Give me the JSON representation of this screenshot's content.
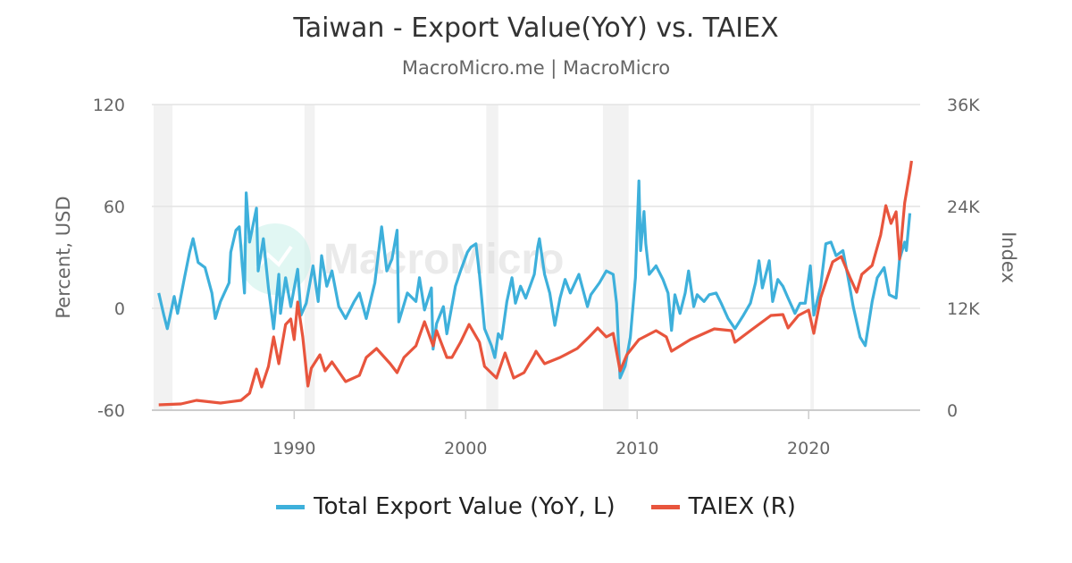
{
  "title": "Taiwan - Export Value(YoY) vs. TAIEX",
  "subtitle": "MacroMicro.me | MacroMicro",
  "watermark": "MacroMicro",
  "legend": [
    {
      "label": "Total Export Value (YoY, L)",
      "color": "#3eb0db"
    },
    {
      "label": "TAIEX (R)",
      "color": "#e8553d"
    }
  ],
  "chart_data": {
    "type": "line",
    "title": "Taiwan - Export Value(YoY) vs. TAIEX",
    "left_axis": {
      "label": "Percent, USD",
      "range": [
        -60,
        120
      ],
      "ticks": [
        "-60",
        "0",
        "60",
        "120"
      ]
    },
    "right_axis": {
      "label": "Index",
      "range": [
        0,
        36000
      ],
      "ticks": [
        "0",
        "12K",
        "24K",
        "36K"
      ]
    },
    "x_axis": {
      "range": [
        1981.7,
        2026.5
      ],
      "ticks": [
        "1990",
        "2000",
        "2010",
        "2020"
      ]
    },
    "grid": true,
    "legend_position": "bottom",
    "recession_shading": [
      [
        1981.8,
        1982.9
      ],
      [
        1990.6,
        1991.2
      ],
      [
        2001.2,
        2001.9
      ],
      [
        2008.0,
        2009.5
      ],
      [
        2020.1,
        2020.3
      ]
    ],
    "series": [
      {
        "name": "Total Export Value (YoY, L)",
        "axis": "left",
        "color": "#3eb0db",
        "x": [
          1982.1,
          1982.4,
          1982.6,
          1983.0,
          1983.2,
          1983.6,
          1983.9,
          1984.1,
          1984.4,
          1984.8,
          1985.2,
          1985.4,
          1985.7,
          1986.2,
          1986.3,
          1986.6,
          1986.8,
          1987.1,
          1987.2,
          1987.4,
          1987.8,
          1987.9,
          1988.2,
          1988.5,
          1988.8,
          1989.1,
          1989.2,
          1989.5,
          1989.8,
          1990.2,
          1990.4,
          1990.7,
          1991.1,
          1991.4,
          1991.6,
          1991.9,
          1992.2,
          1992.6,
          1993.0,
          1993.5,
          1993.8,
          1994.2,
          1994.7,
          1995.1,
          1995.4,
          1995.7,
          1996.0,
          1996.1,
          1996.6,
          1997.1,
          1997.3,
          1997.6,
          1998.0,
          1998.1,
          1998.3,
          1998.7,
          1998.9,
          1999.4,
          1999.7,
          2000.1,
          2000.3,
          2000.6,
          2000.8,
          2001.1,
          2001.5,
          2001.7,
          2001.9,
          2002.1,
          2002.4,
          2002.7,
          2002.9,
          2003.2,
          2003.5,
          2004.0,
          2004.2,
          2004.3,
          2004.6,
          2004.9,
          2005.2,
          2005.5,
          2005.8,
          2006.1,
          2006.6,
          2007.1,
          2007.3,
          2007.8,
          2008.2,
          2008.6,
          2008.8,
          2009.0,
          2009.3,
          2009.6,
          2009.9,
          2010.1,
          2010.2,
          2010.4,
          2010.5,
          2010.7,
          2011.1,
          2011.5,
          2011.8,
          2012.0,
          2012.2,
          2012.5,
          2012.8,
          2013.0,
          2013.3,
          2013.5,
          2013.9,
          2014.2,
          2014.6,
          2014.9,
          2015.3,
          2015.7,
          2016.2,
          2016.6,
          2016.9,
          2017.1,
          2017.3,
          2017.7,
          2017.9,
          2018.2,
          2018.5,
          2018.8,
          2019.2,
          2019.5,
          2019.8,
          2020.1,
          2020.3,
          2020.7,
          2021.0,
          2021.3,
          2021.6,
          2022.0,
          2022.3,
          2022.6,
          2023.0,
          2023.3,
          2023.7,
          2024.0,
          2024.4,
          2024.7,
          2025.1,
          2025.3,
          2025.6,
          2025.7,
          2025.9
        ],
        "values": [
          9,
          -4,
          -12,
          7,
          -3,
          18,
          33,
          41,
          27,
          24,
          9,
          -6,
          4,
          15,
          33,
          46,
          48,
          9,
          68,
          39,
          59,
          22,
          41,
          12,
          -12,
          20,
          -3,
          18,
          1,
          23,
          -4,
          3,
          25,
          4,
          31,
          13,
          22,
          1,
          -6,
          4,
          9,
          -6,
          15,
          48,
          22,
          29,
          46,
          -8,
          9,
          4,
          18,
          -1,
          12,
          -24,
          -9,
          1,
          -15,
          13,
          22,
          33,
          36,
          38,
          20,
          -12,
          -22,
          -29,
          -15,
          -18,
          4,
          18,
          3,
          13,
          6,
          20,
          36,
          41,
          20,
          9,
          -10,
          6,
          17,
          9,
          20,
          1,
          8,
          15,
          22,
          20,
          3,
          -41,
          -34,
          -17,
          18,
          75,
          34,
          57,
          38,
          20,
          25,
          17,
          9,
          -13,
          8,
          -3,
          9,
          22,
          1,
          8,
          4,
          8,
          9,
          3,
          -6,
          -12,
          -4,
          3,
          15,
          28,
          12,
          28,
          4,
          17,
          13,
          6,
          -3,
          3,
          3,
          25,
          -4,
          13,
          38,
          39,
          31,
          34,
          18,
          1,
          -17,
          -22,
          4,
          18,
          24,
          8,
          6,
          29,
          39,
          34,
          56
        ]
      },
      {
        "name": "TAIEX (R)",
        "axis": "right",
        "color": "#e8553d",
        "x": [
          1982.1,
          1983.4,
          1984.3,
          1985.7,
          1986.9,
          1987.4,
          1987.8,
          1988.1,
          1988.5,
          1988.8,
          1989.1,
          1989.5,
          1989.8,
          1990.0,
          1990.2,
          1990.5,
          1990.8,
          1991.0,
          1991.5,
          1991.8,
          1992.2,
          1993.0,
          1993.8,
          1994.2,
          1994.8,
          1995.6,
          1996.0,
          1996.4,
          1997.1,
          1997.6,
          1998.1,
          1998.3,
          1998.9,
          1999.2,
          1999.7,
          2000.2,
          2000.8,
          2001.1,
          2001.8,
          2002.3,
          2002.8,
          2003.4,
          2004.0,
          2004.1,
          2004.6,
          2005.5,
          2006.5,
          2007.2,
          2007.7,
          2008.2,
          2008.6,
          2009.0,
          2009.4,
          2010.1,
          2011.1,
          2011.7,
          2012.0,
          2013.1,
          2014.5,
          2015.5,
          2015.7,
          2016.6,
          2017.8,
          2018.5,
          2018.8,
          2019.4,
          2020.0,
          2020.3,
          2020.7,
          2021.1,
          2021.4,
          2021.9,
          2022.4,
          2022.8,
          2023.1,
          2023.7,
          2024.2,
          2024.5,
          2024.8,
          2025.1,
          2025.3,
          2025.6,
          2025.9,
          2026.0
        ],
        "values": [
          630,
          740,
          1160,
          840,
          1160,
          2000,
          4840,
          2740,
          5160,
          8630,
          5470,
          10100,
          10740,
          8320,
          12740,
          8630,
          2840,
          4950,
          6530,
          4630,
          5680,
          3370,
          4100,
          6210,
          7260,
          5470,
          4420,
          6210,
          7580,
          10420,
          7580,
          9370,
          6210,
          6210,
          8000,
          10100,
          8000,
          5160,
          3790,
          6740,
          3790,
          4420,
          6530,
          6950,
          5470,
          6210,
          7260,
          8630,
          9680,
          8630,
          9050,
          4630,
          6530,
          8320,
          9370,
          8630,
          6950,
          8320,
          9580,
          9370,
          8000,
          9370,
          11160,
          11260,
          9680,
          11160,
          11790,
          9050,
          13260,
          15680,
          17470,
          18100,
          15680,
          13890,
          16000,
          17050,
          20630,
          24100,
          22000,
          23370,
          17790,
          24420,
          28000,
          29370
        ]
      }
    ]
  }
}
